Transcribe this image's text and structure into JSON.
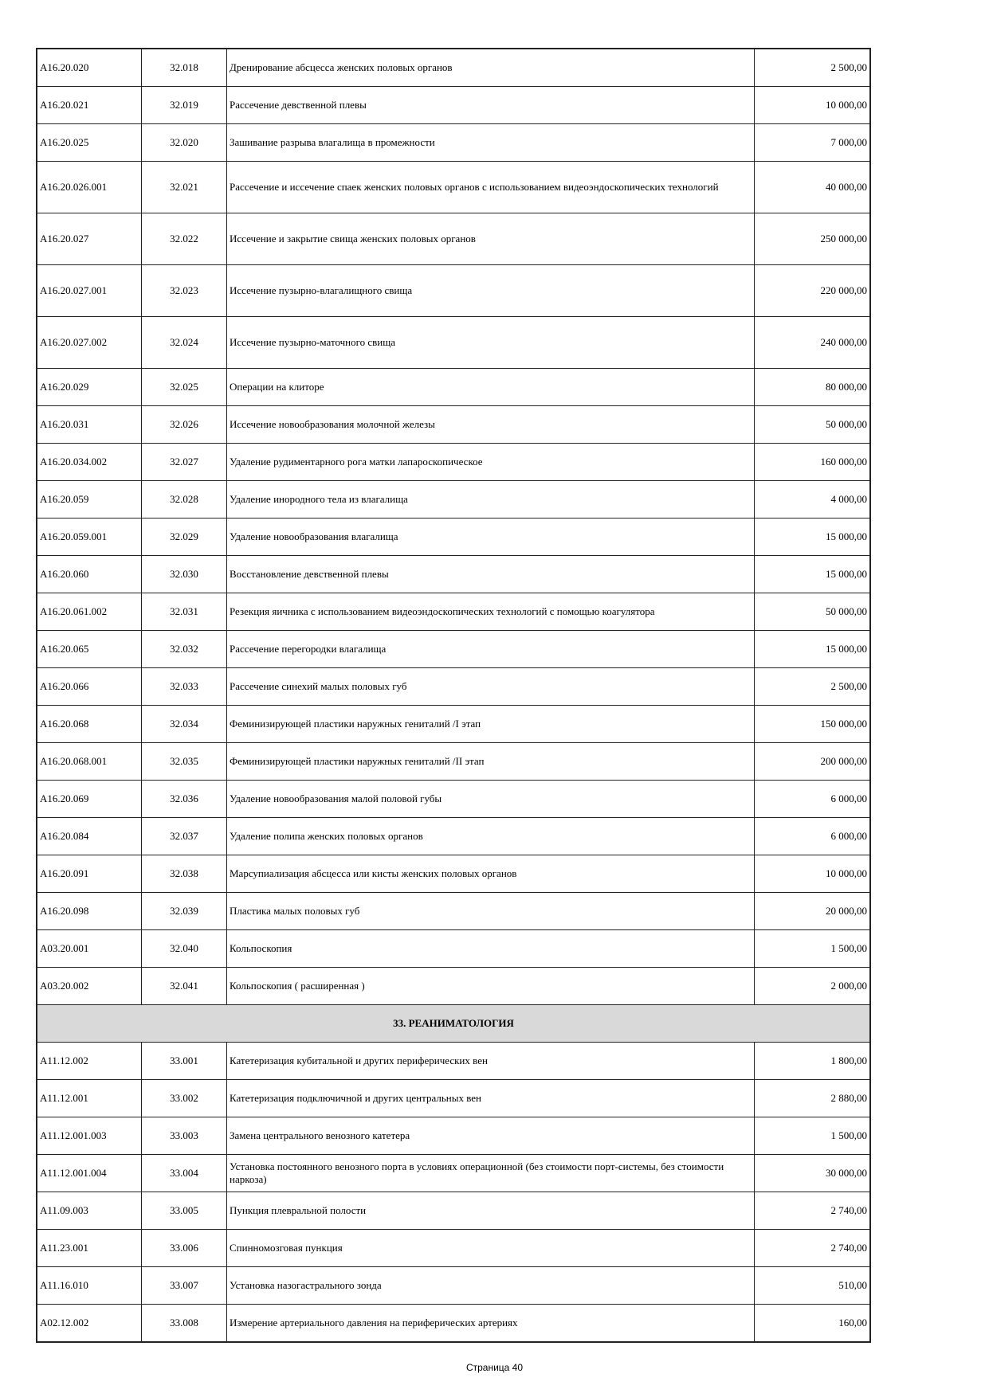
{
  "rows_before": [
    {
      "code": "A16.20.020",
      "num": "32.018",
      "name": "Дренирование абсцесса женских половых органов",
      "price": "2 500,00"
    },
    {
      "code": "A16.20.021",
      "num": "32.019",
      "name": "Рассечение девственной плевы",
      "price": "10 000,00"
    },
    {
      "code": "A16.20.025",
      "num": "32.020",
      "name": "Зашивание разрыва влагалища в промежности",
      "price": "7 000,00"
    },
    {
      "code": "A16.20.026.001",
      "num": "32.021",
      "name": "Рассечение и иссечение спаек женских половых органов с использованием видеоэндоскопических технологий",
      "price": "40 000,00",
      "tall": true
    },
    {
      "code": "A16.20.027",
      "num": "32.022",
      "name": "Иссечение и закрытие свища женских половых органов",
      "price": "250 000,00",
      "tall": true
    },
    {
      "code": "A16.20.027.001",
      "num": "32.023",
      "name": "Иссечение пузырно-влагалищного свища",
      "price": "220 000,00",
      "tall": true
    },
    {
      "code": "A16.20.027.002",
      "num": "32.024",
      "name": "Иссечение пузырно-маточного свища",
      "price": "240 000,00",
      "tall": true
    },
    {
      "code": "A16.20.029",
      "num": "32.025",
      "name": "Операции на клиторе",
      "price": "80 000,00"
    },
    {
      "code": "A16.20.031",
      "num": "32.026",
      "name": "Иссечение новообразования молочной железы",
      "price": "50 000,00"
    },
    {
      "code": "A16.20.034.002",
      "num": "32.027",
      "name": "Удаление рудиментарного рога матки лапароскопическое",
      "price": "160 000,00"
    },
    {
      "code": "A16.20.059",
      "num": "32.028",
      "name": "Удаление инородного тела из влагалища",
      "price": "4 000,00"
    },
    {
      "code": "A16.20.059.001",
      "num": "32.029",
      "name": "Удаление новообразования влагалища",
      "price": "15 000,00"
    },
    {
      "code": "A16.20.060",
      "num": "32.030",
      "name": "Восстановление девственной плевы",
      "price": "15 000,00"
    },
    {
      "code": "A16.20.061.002",
      "num": "32.031",
      "name": "Резекция яичника с использованием видеоэндоскопических технологий с помощью коагулятора",
      "price": "50 000,00"
    },
    {
      "code": "A16.20.065",
      "num": "32.032",
      "name": "Рассечение перегородки влагалища",
      "price": "15 000,00"
    },
    {
      "code": "A16.20.066",
      "num": "32.033",
      "name": "Рассечение синехий малых половых губ",
      "price": "2 500,00"
    },
    {
      "code": "A16.20.068",
      "num": "32.034",
      "name": "Феминизирующей пластики наружных гениталий /I этап",
      "price": "150 000,00"
    },
    {
      "code": "A16.20.068.001",
      "num": "32.035",
      "name": "Феминизирующей пластики наружных гениталий /II этап",
      "price": "200 000,00"
    },
    {
      "code": "A16.20.069",
      "num": "32.036",
      "name": "Удаление новообразования малой половой губы",
      "price": "6 000,00"
    },
    {
      "code": "A16.20.084",
      "num": "32.037",
      "name": "Удаление полипа женских половых органов",
      "price": "6 000,00"
    },
    {
      "code": "A16.20.091",
      "num": "32.038",
      "name": "Марсупиализация абсцесса или кисты женских половых органов",
      "price": "10 000,00"
    },
    {
      "code": "A16.20.098",
      "num": "32.039",
      "name": "Пластика малых половых губ",
      "price": "20 000,00"
    },
    {
      "code": "A03.20.001",
      "num": "32.040",
      "name": "Кольпоскопия",
      "price": "1 500,00"
    },
    {
      "code": "A03.20.002",
      "num": "32.041",
      "name": "Кольпоскопия ( расширенная )",
      "price": "2 000,00"
    }
  ],
  "section_title": "33. РЕАНИМАТОЛОГИЯ",
  "rows_after": [
    {
      "code": "A11.12.002",
      "num": "33.001",
      "name": "Катетеризация кубитальной и других периферических вен",
      "price": "1 800,00"
    },
    {
      "code": "A11.12.001",
      "num": "33.002",
      "name": "Катетеризация подключичной и других центральных вен",
      "price": "2 880,00"
    },
    {
      "code": "A11.12.001.003",
      "num": "33.003",
      "name": "Замена центрального венозного катетера",
      "price": "1 500,00"
    },
    {
      "code": "A11.12.001.004",
      "num": "33.004",
      "name": "Установка постоянного венозного порта в условиях операционной (без стоимости порт-системы, без стоимости наркоза)",
      "price": "30 000,00"
    },
    {
      "code": "A11.09.003",
      "num": "33.005",
      "name": "Пункция плевральной полости",
      "price": "2 740,00"
    },
    {
      "code": " A11.23.001",
      "num": "33.006",
      "name": "Спинномозговая пункция",
      "price": "2 740,00"
    },
    {
      "code": "A11.16.010",
      "num": "33.007",
      "name": "Установка назогастрального зонда",
      "price": "510,00"
    },
    {
      "code": "A02.12.002",
      "num": "33.008",
      "name": "Измерение артериального давления на периферических артериях",
      "price": "160,00"
    }
  ],
  "footer": "Страница 40"
}
